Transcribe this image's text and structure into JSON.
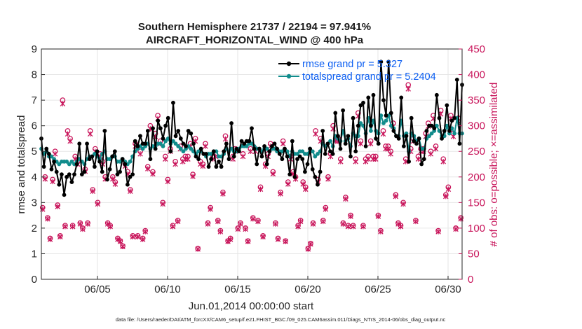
{
  "chart_data": {
    "type": "line",
    "title_line1": "Southern Hemisphere 21737 / 22194 = 97.941%",
    "title_line2": "AIRCRAFT_HORIZONTAL_WIND @ 400 hPa",
    "xlabel": "Jun.01,2014 00:00:00 start",
    "ylabel": "rmse and totalspread",
    "ylabel_right": "# of obs: o=possible; ×=assimilated",
    "xlim": [
      1,
      31
    ],
    "ylim": [
      0,
      9
    ],
    "ylim_right": [
      0,
      450
    ],
    "x_ticks": [
      5,
      10,
      15,
      20,
      25,
      30
    ],
    "x_tick_labels": [
      "06/05",
      "06/10",
      "06/15",
      "06/20",
      "06/25",
      "06/30"
    ],
    "y_ticks": [
      "0",
      "1",
      "2",
      "3",
      "4",
      "5",
      "6",
      "7",
      "8",
      "9"
    ],
    "y_ticks_right": [
      "0",
      "50",
      "100",
      "150",
      "200",
      "250",
      "300",
      "350",
      "400",
      "450"
    ],
    "series": [
      {
        "name": "rmse grand pr = 5.327",
        "color": "#000000",
        "marker": "dot",
        "values": [
          5.5,
          4.4,
          5.1,
          4.9,
          4.3,
          4.6,
          4.2,
          3.7,
          4.1,
          3.3,
          4.0,
          4.1,
          3.8,
          4.1,
          4.5,
          5.3,
          4.1,
          4.2,
          5.3,
          4.7,
          4.8,
          4.4,
          5.0,
          4.6,
          4.2,
          5.8,
          3.9,
          4.3,
          4.8,
          5.0,
          4.1,
          4.2,
          4.7,
          4.5,
          3.7,
          4.0,
          4.1,
          5.4,
          5.2,
          5.6,
          5.3,
          5.3,
          5.8,
          4.7,
          5.9,
          5.1,
          6.2,
          5.9,
          5.5,
          6.0,
          6.3,
          5.0,
          6.9,
          5.6,
          5.8,
          5.5,
          5.3,
          5.2,
          5.8,
          5.7,
          5.3,
          4.8,
          4.7,
          5.1,
          4.9,
          4.9,
          4.4,
          4.7,
          5.0,
          4.4,
          4.6,
          4.4,
          5.0,
          5.3,
          4.7,
          6.1,
          4.8,
          5.1,
          5.0,
          5.4,
          5.3,
          5.4,
          5.4,
          5.9,
          5.1,
          4.5,
          5.1,
          4.8,
          5.2,
          4.5,
          5.0,
          5.2,
          5.3,
          5.1,
          4.9,
          4.7,
          5.1,
          4.8,
          4.1,
          5.4,
          4.0,
          4.7,
          4.8,
          4.7,
          4.2,
          4.5,
          5.1,
          4.3,
          4.0,
          3.7,
          4.2,
          5.8,
          4.9,
          5.3,
          5.0,
          4.9,
          6.5,
          5.6,
          5.1,
          6.6,
          5.3,
          5.6,
          4.8,
          6.3,
          5.0,
          6.0,
          6.8,
          6.9,
          5.2,
          7.1,
          6.0,
          7.2,
          5.5,
          5.3,
          8.5,
          7.0,
          6.4,
          8.5,
          6.5,
          5.8,
          5.6,
          5.5,
          7.1,
          5.2,
          5.6,
          4.6,
          6.3,
          5.4,
          5.3,
          5.5,
          4.5,
          4.7,
          5.8,
          6.0,
          6.0,
          5.9,
          7.2,
          6.3,
          5.5,
          5.8,
          6.8,
          5.8,
          6.2,
          6.3,
          7.8,
          5.3,
          7.6
        ]
      },
      {
        "name": "totalspread grand pr = 5.2404",
        "color": "#118c8c",
        "marker": "dot",
        "values": [
          5.1,
          4.9,
          5.0,
          4.8,
          4.8,
          4.7,
          4.6,
          4.5,
          4.6,
          4.6,
          4.6,
          4.5,
          4.6,
          4.5,
          4.6,
          4.7,
          4.6,
          4.5,
          4.7,
          4.8,
          4.8,
          4.9,
          4.8,
          4.7,
          4.9,
          5.0,
          4.7,
          4.7,
          4.8,
          4.8,
          4.6,
          4.6,
          4.7,
          4.6,
          4.5,
          4.6,
          4.8,
          5.0,
          5.1,
          5.2,
          5.1,
          5.2,
          5.3,
          5.1,
          5.2,
          5.2,
          5.3,
          5.3,
          5.2,
          5.4,
          5.5,
          5.3,
          5.4,
          5.3,
          5.2,
          5.1,
          5.0,
          5.1,
          5.2,
          5.1,
          5.0,
          4.9,
          5.0,
          5.0,
          4.9,
          4.8,
          4.9,
          4.9,
          5.0,
          5.0,
          4.8,
          4.8,
          4.9,
          5.1,
          5.0,
          5.1,
          5.0,
          5.0,
          5.1,
          5.2,
          5.2,
          5.2,
          5.3,
          5.3,
          5.2,
          5.1,
          5.1,
          5.0,
          5.1,
          5.1,
          5.0,
          5.1,
          5.1,
          5.0,
          5.0,
          5.0,
          5.1,
          5.0,
          4.8,
          5.0,
          4.9,
          4.9,
          5.0,
          5.0,
          4.9,
          4.9,
          5.1,
          5.0,
          4.8,
          4.9,
          5.0,
          5.3,
          5.2,
          5.3,
          5.4,
          5.2,
          5.6,
          5.5,
          5.4,
          5.8,
          5.4,
          5.5,
          5.2,
          5.7,
          5.6,
          5.6,
          6.1,
          6.0,
          5.7,
          6.3,
          5.8,
          6.2,
          5.8,
          5.7,
          6.4,
          6.1,
          6.2,
          6.4,
          6.0,
          5.9,
          5.6,
          5.6,
          6.2,
          5.6,
          5.7,
          5.0,
          5.7,
          5.6,
          5.4,
          5.5,
          5.1,
          5.1,
          5.5,
          5.6,
          5.7,
          5.8,
          6.0,
          5.8,
          5.6,
          5.6,
          6.0,
          5.7,
          5.9,
          5.7,
          6.3,
          5.7,
          5.7
        ]
      }
    ],
    "obs_possible": [
      140,
      200,
      120,
      80,
      195,
      250,
      145,
      85,
      350,
      105,
      290,
      275,
      105,
      240,
      230,
      110,
      100,
      215,
      110,
      290,
      175,
      255,
      150,
      245,
      230,
      200,
      110,
      105,
      200,
      190,
      80,
      75,
      65,
      225,
      210,
      175,
      85,
      265,
      85,
      250,
      80,
      95,
      220,
      300,
      210,
      285,
      320,
      270,
      150,
      240,
      195,
      255,
      105,
      230,
      115,
      260,
      235,
      240,
      240,
      265,
      205,
      275,
      60,
      230,
      225,
      265,
      110,
      140,
      240,
      245,
      115,
      95,
      170,
      280,
      75,
      80,
      240,
      255,
      100,
      110,
      245,
      100,
      75,
      255,
      120,
      255,
      115,
      180,
      85,
      225,
      245,
      265,
      210,
      110,
      80,
      170,
      270,
      75,
      190,
      240,
      210,
      200,
      105,
      115,
      190,
      180,
      60,
      70,
      110,
      290,
      195,
      275,
      115,
      140,
      200,
      245,
      300,
      275,
      275,
      235,
      110,
      160,
      105,
      125,
      105,
      235,
      325,
      270,
      105,
      235,
      240,
      270,
      240,
      240,
      125,
      95,
      290,
      260,
      260,
      250,
      305,
      165,
      110,
      105,
      150,
      235,
      380,
      255,
      275,
      115,
      240,
      255,
      255,
      285,
      305,
      250,
      320,
      260,
      95,
      330,
      235,
      165,
      180,
      320,
      285,
      100,
      315,
      120
    ]
  },
  "footer": "data file: /Users/raeder/DAI/ATM_forcXX/CAM6_setup/f.e21.FHIST_BGC.f09_025.CAM6assim.011/Diags_NTrS_2014-06/obs_diag_output.nc"
}
